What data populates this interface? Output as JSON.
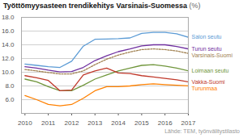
{
  "chart_data": {
    "type": "line",
    "title": "Työttömyysasteen trendikehitys Varsinais-Suomessa",
    "subtitle": "(%)",
    "annotations": [
      "Lähde: TEM, työnvälitystilasto"
    ],
    "x": [
      2010,
      2010.5,
      2011,
      2011.5,
      2012,
      2012.5,
      2013,
      2013.5,
      2014,
      2014.5,
      2015,
      2015.5,
      2016,
      2016.5,
      2017
    ],
    "xlim": [
      2009.85,
      2017.0
    ],
    "xticks": [
      2010,
      2011,
      2012,
      2013,
      2014,
      2015,
      2016,
      2017
    ],
    "ylim": [
      4.0,
      18.0
    ],
    "yticks": [
      {
        "value": 6.0,
        "label": "6.0"
      },
      {
        "value": 8.0,
        "label": "8.0"
      },
      {
        "value": 10.0,
        "label": "10.0"
      },
      {
        "value": 12.0,
        "label": "12.0"
      },
      {
        "value": 14.0,
        "label": "14.0"
      },
      {
        "value": 16.0,
        "label": "16.0"
      },
      {
        "value": 18.0,
        "label": "18.0"
      }
    ],
    "grid": "y",
    "series": [
      {
        "name": "Salon seutu",
        "color": "#5B9BD5",
        "line_style": "solid",
        "values": [
          11.2,
          11.0,
          10.8,
          10.7,
          11.6,
          13.8,
          14.8,
          14.85,
          14.9,
          15.0,
          15.65,
          15.8,
          15.8,
          15.6,
          15.1
        ]
      },
      {
        "name": "Turun seutu",
        "color": "#7030A0",
        "line_style": "solid",
        "values": [
          10.8,
          10.6,
          10.3,
          10.05,
          10.1,
          10.7,
          11.7,
          12.4,
          13.0,
          13.4,
          13.85,
          14.0,
          14.0,
          13.75,
          13.4
        ]
      },
      {
        "name": "Varsinais-Suomi",
        "color": "#A08050",
        "line_style": "dotted",
        "values": [
          10.4,
          10.2,
          9.95,
          9.75,
          9.75,
          10.2,
          11.1,
          11.9,
          12.5,
          12.95,
          13.3,
          13.4,
          13.3,
          13.1,
          12.75
        ]
      },
      {
        "name": "Loimaan seutu",
        "color": "#70963C",
        "line_style": "solid",
        "values": [
          9.0,
          8.6,
          7.9,
          7.3,
          7.3,
          8.1,
          9.0,
          9.6,
          10.2,
          10.6,
          11.0,
          11.1,
          10.9,
          10.6,
          10.2
        ]
      },
      {
        "name": "Turunmaa",
        "color": "#FF8000",
        "line_style": "solid",
        "values": [
          6.6,
          6.0,
          5.3,
          5.1,
          5.3,
          6.2,
          7.3,
          7.9,
          7.9,
          8.0,
          8.2,
          8.3,
          8.2,
          8.1,
          8.0
        ]
      },
      {
        "name": "Vakka-Suomi",
        "color": "#C0392B",
        "line_style": "solid",
        "values": [
          9.5,
          9.2,
          8.8,
          7.3,
          7.4,
          9.6,
          10.2,
          10.6,
          9.9,
          9.8,
          9.5,
          9.3,
          9.1,
          8.9,
          8.6
        ]
      }
    ]
  }
}
